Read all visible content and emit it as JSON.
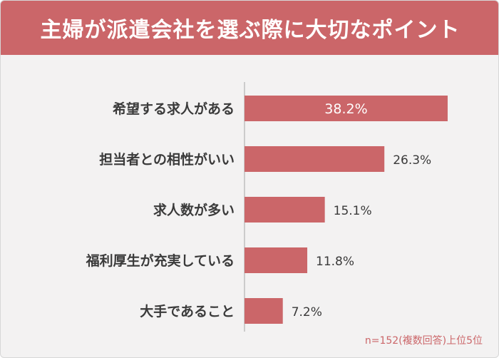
{
  "header": {
    "title": "主婦が派遣会社を選ぶ際に大切なポイント"
  },
  "note": "n=152(複数回答)上位5位",
  "colors": {
    "accent": "#cb6669",
    "background": "#f3f2f2",
    "axis": "#bfbfbf"
  },
  "chart_data": {
    "type": "bar",
    "orientation": "horizontal",
    "categories": [
      "希望する求人がある",
      "担当者との相性がいい",
      "求人数が多い",
      "福利厚生が充実している",
      "大手であること"
    ],
    "values": [
      38.2,
      26.3,
      15.1,
      11.8,
      7.2
    ],
    "value_labels": [
      "38.2%",
      "26.3%",
      "15.1%",
      "11.8%",
      "7.2%"
    ],
    "unit": "%",
    "xlim": [
      0,
      40
    ],
    "grid": false,
    "legend": "none"
  }
}
